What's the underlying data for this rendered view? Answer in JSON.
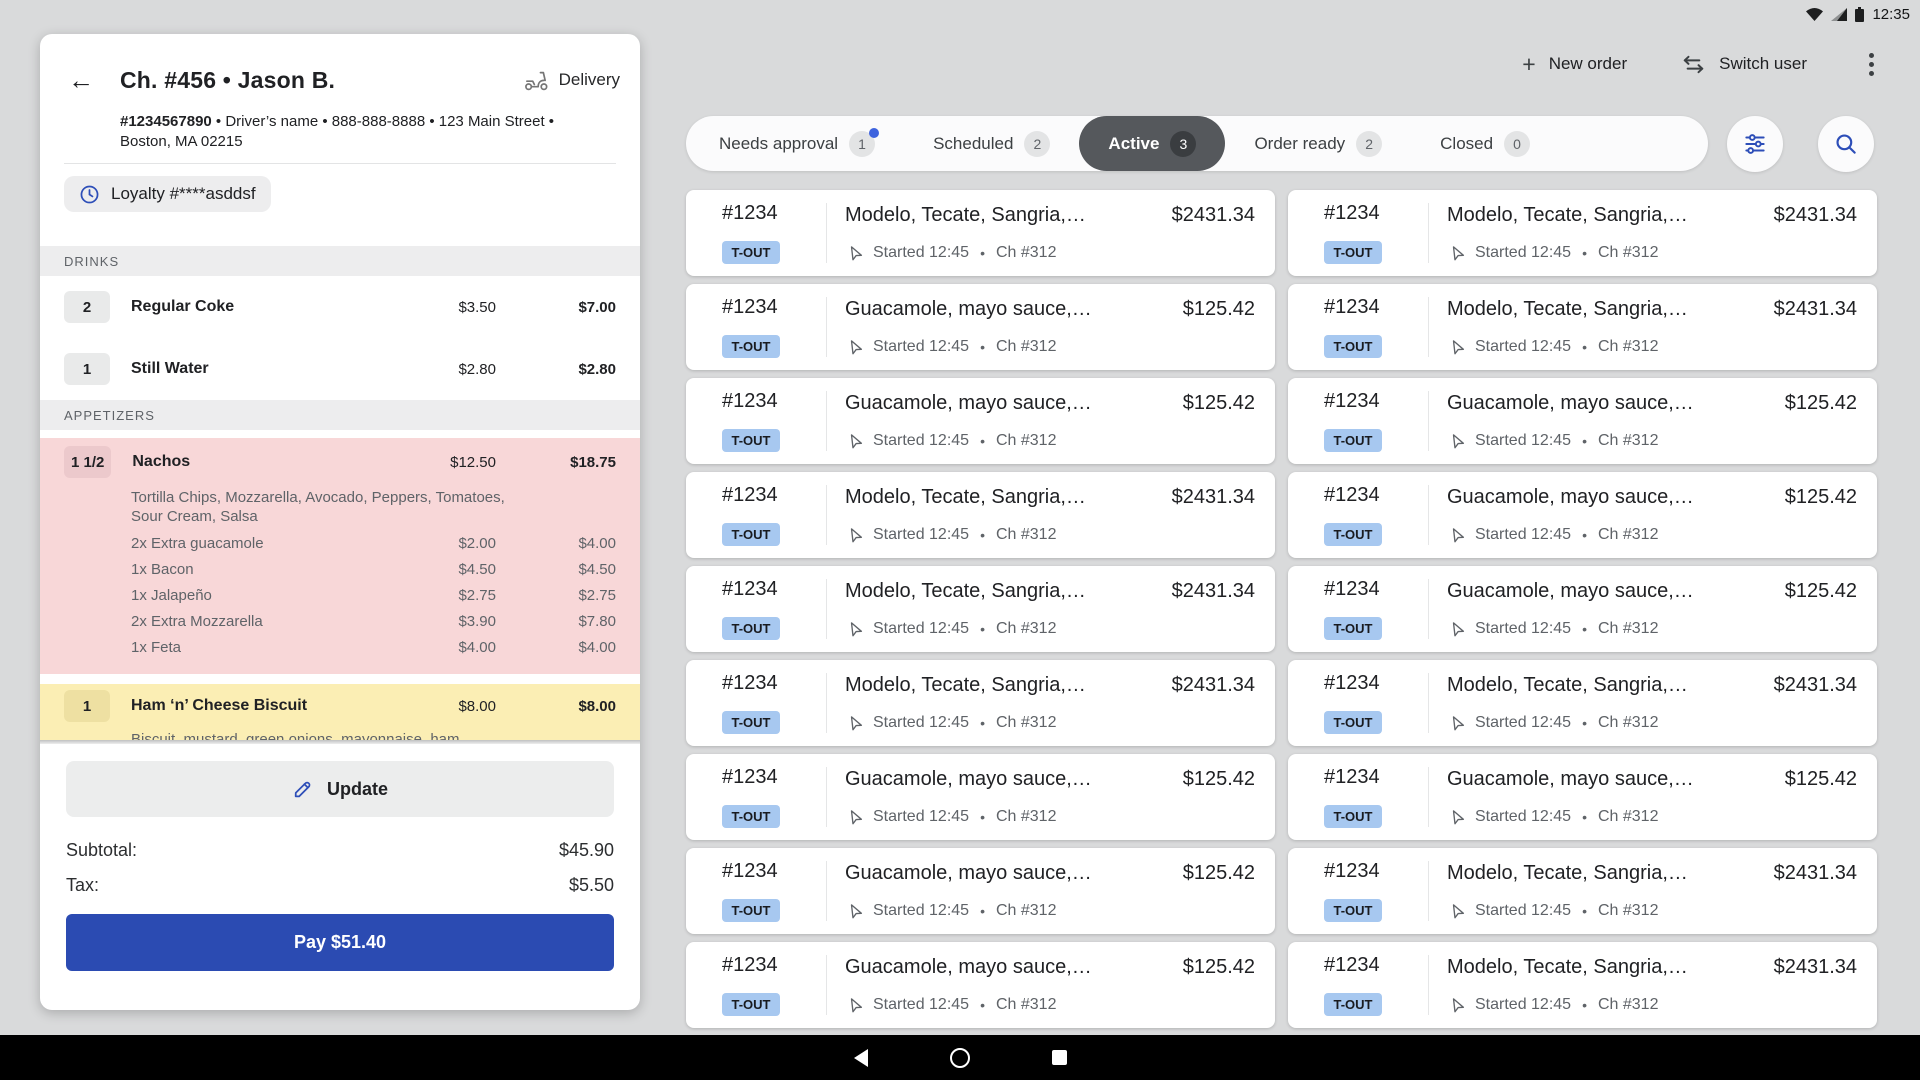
{
  "status_bar": {
    "time": "12:35"
  },
  "order_panel": {
    "title": "Ch. #456  •  Jason B.",
    "order_type": "Delivery",
    "meta_number": "#1234567890",
    "meta_rest": " • Driver’s name • 888-888-8888 • 123 Main Street • Boston, MA 02215",
    "loyalty": "Loyalty #****asddsf",
    "sections": [
      {
        "name": "DRINKS",
        "items": [
          {
            "qty": "2",
            "name": "Regular Coke",
            "unit": "$3.50",
            "total": "$7.00",
            "highlight": "none"
          },
          {
            "qty": "1",
            "name": "Still Water",
            "unit": "$2.80",
            "total": "$2.80",
            "highlight": "none"
          }
        ]
      },
      {
        "name": "APPETIZERS",
        "items": [
          {
            "qty": "1 1/2",
            "name": "Nachos",
            "unit": "$12.50",
            "total": "$18.75",
            "highlight": "red",
            "description": "Tortilla Chips, Mozzarella, Avocado, Peppers, Tomatoes, Sour Cream, Salsa",
            "modifiers": [
              {
                "label": "2x Extra guacamole",
                "unit": "$2.00",
                "total": "$4.00"
              },
              {
                "label": "1x Bacon",
                "unit": "$4.50",
                "total": "$4.50"
              },
              {
                "label": "1x Jalapeño",
                "unit": "$2.75",
                "total": "$2.75"
              },
              {
                "label": "2x Extra Mozzarella",
                "unit": "$3.90",
                "total": "$7.80"
              },
              {
                "label": "1x Feta",
                "unit": "$4.00",
                "total": "$4.00"
              }
            ]
          },
          {
            "qty": "1",
            "name": "Ham ‘n’ Cheese Biscuit",
            "unit": "$8.00",
            "total": "$8.00",
            "highlight": "yellow",
            "description": "Biscuit, mustard, green onions, mayonnaise, ham, cheese, romaine",
            "description_clipped": true
          }
        ]
      }
    ],
    "update_label": "Update",
    "subtotal_label": "Subtotal:",
    "subtotal_value": "$45.90",
    "tax_label": "Tax:",
    "tax_value": "$5.50",
    "pay_label": "Pay $51.40"
  },
  "top_actions": {
    "new_order": "New order",
    "switch_user": "Switch user"
  },
  "tabs": [
    {
      "label": "Needs approval",
      "count": "1",
      "active": false,
      "notification_dot": true
    },
    {
      "label": "Scheduled",
      "count": "2",
      "active": false,
      "notification_dot": false
    },
    {
      "label": "Active",
      "count": "3",
      "active": true,
      "notification_dot": false
    },
    {
      "label": "Order ready",
      "count": "2",
      "active": false,
      "notification_dot": false
    },
    {
      "label": "Closed",
      "count": "0",
      "active": false,
      "notification_dot": false
    }
  ],
  "orders": {
    "number": "#1234",
    "badge": "T-OUT",
    "status": "Started 12:45",
    "separator": "•",
    "channel": "Ch #312",
    "items": {
      "modelo": {
        "title": "Modelo, Tecate, Sangria,…",
        "price": "$2431.34"
      },
      "guac": {
        "title": "Guacamole, mayo sauce,…",
        "price": "$125.42"
      }
    },
    "left_column": [
      "modelo",
      "guac",
      "guac",
      "modelo",
      "modelo",
      "modelo",
      "guac",
      "guac",
      "guac"
    ],
    "right_column": [
      "modelo",
      "modelo",
      "guac",
      "guac",
      "guac",
      "modelo",
      "guac",
      "modelo",
      "modelo"
    ]
  },
  "colors": {
    "background": "#d9dadb",
    "primary_blue": "#2b4bb2",
    "icon_blue": "#2d4eb8",
    "takeout_badge": "#a7c8f0",
    "highlight_red": "#f8d7d8",
    "highlight_yellow": "#fbeeb4",
    "active_tab": "#55585c"
  }
}
